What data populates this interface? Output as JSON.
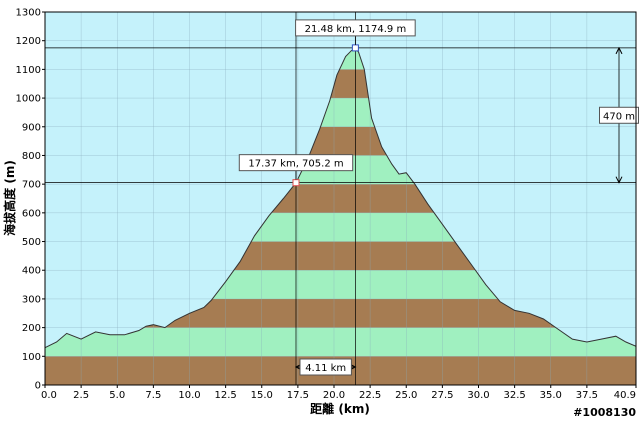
{
  "chart_data": {
    "type": "area",
    "xlabel": "距離 (km)",
    "ylabel": "海拔高度 (m)",
    "xlim": [
      0,
      40.9
    ],
    "ylim": [
      0,
      1300
    ],
    "x_ticks": [
      "0.0",
      "2.5",
      "5.0",
      "7.5",
      "10.0",
      "12.5",
      "15.0",
      "17.5",
      "20.0",
      "22.5",
      "25.0",
      "27.5",
      "30.0",
      "32.5",
      "35.0",
      "37.5",
      "40.9"
    ],
    "y_ticks": [
      "0",
      "100",
      "200",
      "300",
      "400",
      "500",
      "600",
      "700",
      "800",
      "900",
      "1000",
      "1100",
      "1200",
      "1300"
    ],
    "band_colors": [
      "#a67c52",
      "#a0f0c0"
    ],
    "plot_background": "#c5f2fb",
    "profile": {
      "x": [
        0.0,
        0.8,
        1.5,
        2.5,
        3.5,
        4.5,
        5.5,
        6.5,
        7.0,
        7.5,
        8.3,
        9.0,
        10.0,
        11.0,
        11.5,
        12.5,
        13.5,
        14.5,
        15.5,
        16.5,
        17.37,
        18.2,
        19.0,
        19.7,
        20.2,
        20.8,
        21.2,
        21.48,
        21.7,
        22.1,
        22.6,
        23.3,
        24.0,
        24.5,
        25.0,
        25.6,
        26.5,
        27.5,
        28.5,
        29.5,
        30.5,
        31.5,
        32.5,
        33.5,
        34.5,
        35.5,
        36.5,
        37.5,
        38.5,
        39.5,
        40.2,
        40.9
      ],
      "y": [
        130,
        150,
        180,
        160,
        185,
        175,
        175,
        190,
        205,
        210,
        200,
        225,
        250,
        270,
        295,
        360,
        430,
        520,
        590,
        650,
        705,
        790,
        890,
        990,
        1080,
        1145,
        1165,
        1174.9,
        1160,
        1100,
        930,
        830,
        770,
        735,
        740,
        700,
        630,
        560,
        490,
        420,
        350,
        290,
        260,
        250,
        230,
        195,
        160,
        150,
        160,
        170,
        150,
        135
      ]
    },
    "markers": [
      {
        "label": "17.37 km, 705.2 m",
        "x": 17.37,
        "y": 705.2
      },
      {
        "label": "21.48 km, 1174.9 m",
        "x": 21.48,
        "y": 1174.9
      }
    ],
    "annotations": {
      "elevation_diff": "470 m",
      "distance_diff": "4.11 km"
    },
    "watermark": "#1008130"
  }
}
